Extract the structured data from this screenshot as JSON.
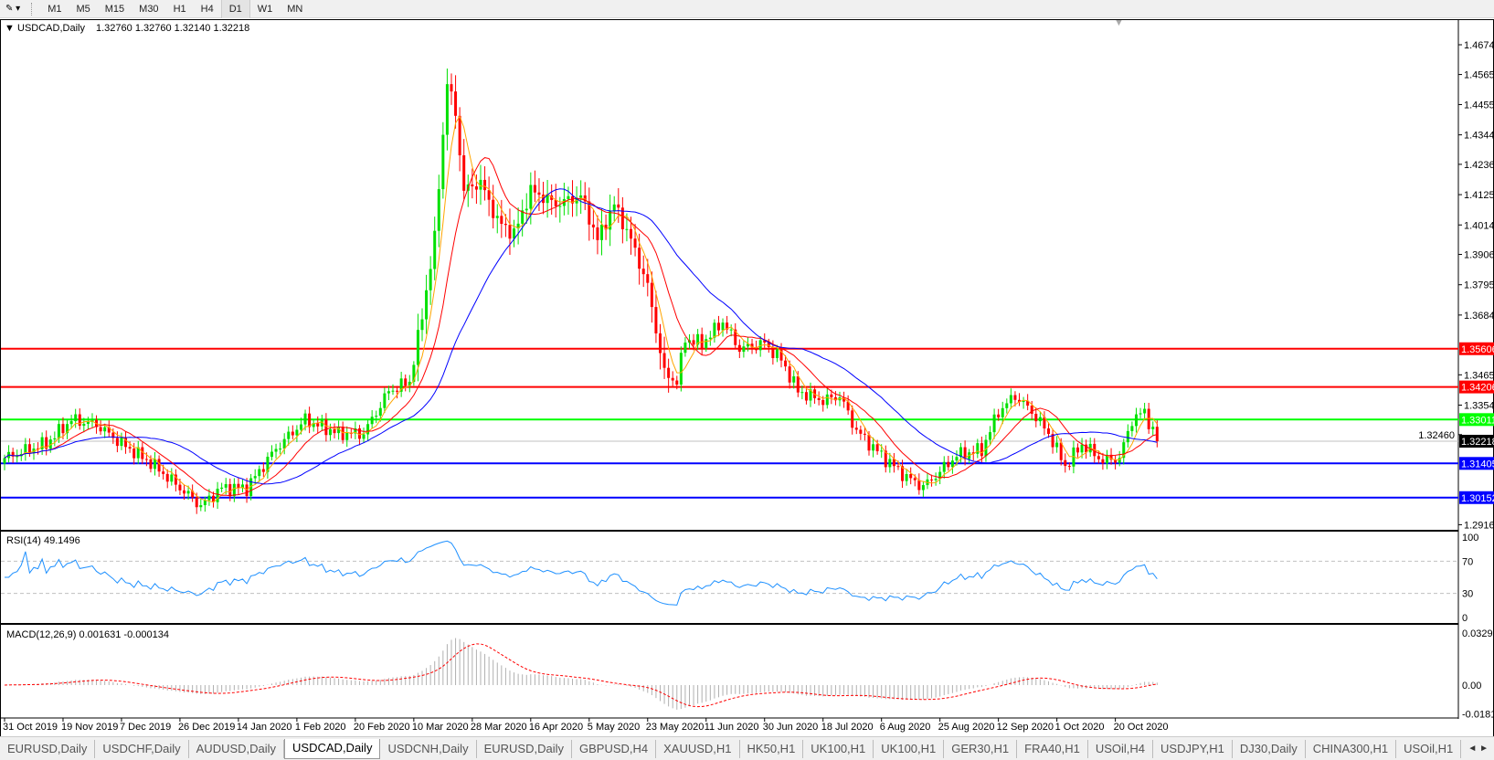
{
  "toolbar": {
    "timeframes": [
      "M1",
      "M5",
      "M15",
      "M30",
      "H1",
      "H4",
      "D1",
      "W1",
      "MN"
    ],
    "active": "D1"
  },
  "chart": {
    "title": "USDCAD,Daily",
    "ohlc_readout": "1.32760 1.32760 1.32140 1.32218",
    "price_ticks": [
      "1.46740",
      "1.45650",
      "1.44550",
      "1.43440",
      "1.42360",
      "1.41250",
      "1.40140",
      "1.39060",
      "1.37950",
      "1.36840",
      "1.34650",
      "1.33540",
      "1.32460",
      "1.29160"
    ],
    "levels": [
      {
        "price": "1.35606",
        "color": "#ff0000"
      },
      {
        "price": "1.34206",
        "color": "#ff0000"
      },
      {
        "price": "1.33011",
        "color": "#00ff00"
      },
      {
        "price": "1.31405",
        "color": "#0000ff"
      },
      {
        "price": "1.30152",
        "color": "#0000ff"
      }
    ],
    "current_price": "1.32218",
    "colors": {
      "bull": "#00e000",
      "bear": "#ff0000",
      "ma_fast": "#ffa500",
      "ma_mid": "#ff0000",
      "ma_slow": "#0000ff"
    },
    "date_labels": [
      "31 Oct 2019",
      "19 Nov 2019",
      "7 Dec 2019",
      "26 Dec 2019",
      "14 Jan 2020",
      "1 Feb 2020",
      "20 Feb 2020",
      "10 Mar 2020",
      "28 Mar 2020",
      "16 Apr 2020",
      "5 May 2020",
      "23 May 2020",
      "11 Jun 2020",
      "30 Jun 2020",
      "18 Jul 2020",
      "6 Aug 2020",
      "25 Aug 2020",
      "12 Sep 2020",
      "1 Oct 2020",
      "20 Oct 2020"
    ]
  },
  "rsi": {
    "title": "RSI(14) 49.1496",
    "ticks": [
      "100",
      "70",
      "30",
      "0"
    ],
    "color": "#1e90ff"
  },
  "macd": {
    "title": "MACD(12,26,9) 0.001631 -0.000134",
    "ticks": [
      "0.032972",
      "0.00",
      "-0.01815"
    ]
  },
  "chart_data": {
    "type": "candlestick",
    "symbol": "USDCAD",
    "timeframe": "Daily",
    "close_keypoints": [
      [
        0,
        1.316
      ],
      [
        10,
        1.3213
      ],
      [
        16,
        1.33
      ],
      [
        22,
        1.3283
      ],
      [
        28,
        1.3213
      ],
      [
        35,
        1.3143
      ],
      [
        47,
        1.2985
      ],
      [
        52,
        1.305
      ],
      [
        58,
        1.305
      ],
      [
        65,
        1.3195
      ],
      [
        72,
        1.33
      ],
      [
        80,
        1.325
      ],
      [
        86,
        1.325
      ],
      [
        92,
        1.3405
      ],
      [
        97,
        1.344
      ],
      [
        100,
        1.368
      ],
      [
        103,
        1.3964
      ],
      [
        106,
        1.454
      ],
      [
        108,
        1.442
      ],
      [
        110,
        1.414
      ],
      [
        114,
        1.417
      ],
      [
        118,
        1.403
      ],
      [
        122,
        1.398
      ],
      [
        126,
        1.414
      ],
      [
        132,
        1.409
      ],
      [
        138,
        1.412
      ],
      [
        142,
        1.396
      ],
      [
        146,
        1.409
      ],
      [
        150,
        1.396
      ],
      [
        154,
        1.379
      ],
      [
        158,
        1.347
      ],
      [
        161,
        1.344
      ],
      [
        163,
        1.3597
      ],
      [
        167,
        1.358
      ],
      [
        172,
        1.366
      ],
      [
        176,
        1.356
      ],
      [
        182,
        1.358
      ],
      [
        186,
        1.352
      ],
      [
        190,
        1.3405
      ],
      [
        196,
        1.337
      ],
      [
        200,
        1.3388
      ],
      [
        204,
        1.326
      ],
      [
        210,
        1.317
      ],
      [
        216,
        1.309
      ],
      [
        220,
        1.3055
      ],
      [
        224,
        1.311
      ],
      [
        228,
        1.317
      ],
      [
        234,
        1.319
      ],
      [
        238,
        1.333
      ],
      [
        242,
        1.3388
      ],
      [
        246,
        1.333
      ],
      [
        250,
        1.325
      ],
      [
        254,
        1.313
      ],
      [
        258,
        1.321
      ],
      [
        263,
        1.315
      ],
      [
        267,
        1.316
      ],
      [
        270,
        1.33
      ],
      [
        273,
        1.333
      ],
      [
        276,
        1.32218
      ]
    ],
    "ylim": [
      1.2916,
      1.4674
    ]
  },
  "tabs": [
    "EURUSD,Daily",
    "USDCHF,Daily",
    "AUDUSD,Daily",
    "USDCAD,Daily",
    "USDCNH,Daily",
    "EURUSD,Daily",
    "GBPUSD,H4",
    "XAUUSD,H1",
    "HK50,H1",
    "UK100,H1",
    "UK100,H1",
    "GER30,H1",
    "FRA40,H1",
    "USOil,H4",
    "USDJPY,H1",
    "DJ30,Daily",
    "CHINA300,H1",
    "USOil,H1"
  ],
  "active_tab": "USDCAD,Daily"
}
